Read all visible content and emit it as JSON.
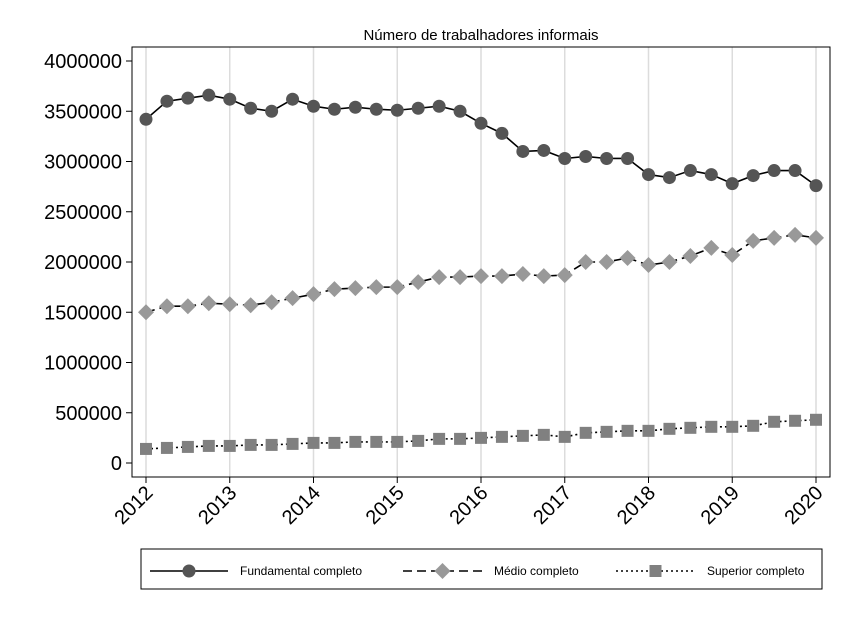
{
  "chart_data": {
    "type": "line",
    "title": "Número de trabalhadores informais",
    "xlabel": "",
    "ylabel": "",
    "x_ticks": [
      "2012",
      "2013",
      "2014",
      "2015",
      "2016",
      "2017",
      "2018",
      "2019",
      "2020"
    ],
    "y_ticks": [
      "4000000",
      "3500000",
      "3000000",
      "2500000",
      "2000000",
      "1500000",
      "1000000",
      "500000",
      "0"
    ],
    "xlim": [
      2012,
      2020
    ],
    "ylim": [
      0,
      4000000
    ],
    "grid": "vertical",
    "legend_position": "bottom",
    "x": [
      2012.0,
      2012.25,
      2012.5,
      2012.75,
      2013.0,
      2013.25,
      2013.5,
      2013.75,
      2014.0,
      2014.25,
      2014.5,
      2014.75,
      2015.0,
      2015.25,
      2015.5,
      2015.75,
      2016.0,
      2016.25,
      2016.5,
      2016.75,
      2017.0,
      2017.25,
      2017.5,
      2017.75,
      2018.0,
      2018.25,
      2018.5,
      2018.75,
      2019.0,
      2019.25,
      2019.5,
      2019.75,
      2020.0
    ],
    "series": [
      {
        "name": "Fundamental completo",
        "line": "solid",
        "marker": "circle",
        "color": "#555555",
        "values": [
          3420000,
          3600000,
          3630000,
          3660000,
          3620000,
          3530000,
          3500000,
          3620000,
          3550000,
          3520000,
          3540000,
          3520000,
          3510000,
          3530000,
          3550000,
          3500000,
          3380000,
          3280000,
          3100000,
          3110000,
          3030000,
          3050000,
          3030000,
          3030000,
          2870000,
          2840000,
          2910000,
          2870000,
          2780000,
          2860000,
          2910000,
          2910000,
          2760000
        ]
      },
      {
        "name": "Médio completo",
        "line": "dashed",
        "marker": "diamond",
        "color": "#999999",
        "values": [
          1500000,
          1560000,
          1560000,
          1590000,
          1580000,
          1570000,
          1600000,
          1640000,
          1680000,
          1730000,
          1740000,
          1750000,
          1750000,
          1800000,
          1850000,
          1850000,
          1860000,
          1860000,
          1880000,
          1860000,
          1870000,
          2000000,
          2000000,
          2040000,
          1970000,
          2000000,
          2060000,
          2140000,
          2070000,
          2210000,
          2240000,
          2270000,
          2240000
        ]
      },
      {
        "name": "Superior completo",
        "line": "dotted",
        "marker": "square",
        "color": "#808080",
        "values": [
          140000,
          150000,
          160000,
          170000,
          170000,
          180000,
          180000,
          190000,
          200000,
          200000,
          210000,
          210000,
          210000,
          220000,
          240000,
          240000,
          250000,
          260000,
          270000,
          280000,
          260000,
          300000,
          310000,
          320000,
          320000,
          340000,
          350000,
          360000,
          360000,
          370000,
          410000,
          420000,
          430000
        ]
      }
    ]
  }
}
